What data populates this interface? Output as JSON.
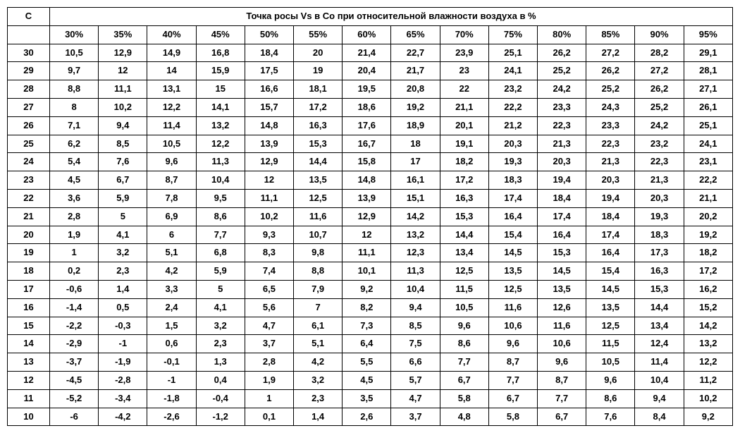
{
  "table": {
    "corner_label": "C",
    "header_title": "Точка росы Vs в Со при относительной влажности воздуха в %",
    "columns": [
      "30%",
      "35%",
      "40%",
      "45%",
      "50%",
      "55%",
      "60%",
      "65%",
      "70%",
      "75%",
      "80%",
      "85%",
      "90%",
      "95%"
    ],
    "row_labels": [
      "30",
      "29",
      "28",
      "27",
      "26",
      "25",
      "24",
      "23",
      "22",
      "21",
      "20",
      "19",
      "18",
      "17",
      "16",
      "15",
      "14",
      "13",
      "12",
      "11",
      "10"
    ],
    "rows": [
      [
        "10,5",
        "12,9",
        "14,9",
        "16,8",
        "18,4",
        "20",
        "21,4",
        "22,7",
        "23,9",
        "25,1",
        "26,2",
        "27,2",
        "28,2",
        "29,1"
      ],
      [
        "9,7",
        "12",
        "14",
        "15,9",
        "17,5",
        "19",
        "20,4",
        "21,7",
        "23",
        "24,1",
        "25,2",
        "26,2",
        "27,2",
        "28,1"
      ],
      [
        "8,8",
        "11,1",
        "13,1",
        "15",
        "16,6",
        "18,1",
        "19,5",
        "20,8",
        "22",
        "23,2",
        "24,2",
        "25,2",
        "26,2",
        "27,1"
      ],
      [
        "8",
        "10,2",
        "12,2",
        "14,1",
        "15,7",
        "17,2",
        "18,6",
        "19,2",
        "21,1",
        "22,2",
        "23,3",
        "24,3",
        "25,2",
        "26,1"
      ],
      [
        "7,1",
        "9,4",
        "11,4",
        "13,2",
        "14,8",
        "16,3",
        "17,6",
        "18,9",
        "20,1",
        "21,2",
        "22,3",
        "23,3",
        "24,2",
        "25,1"
      ],
      [
        "6,2",
        "8,5",
        "10,5",
        "12,2",
        "13,9",
        "15,3",
        "16,7",
        "18",
        "19,1",
        "20,3",
        "21,3",
        "22,3",
        "23,2",
        "24,1"
      ],
      [
        "5,4",
        "7,6",
        "9,6",
        "11,3",
        "12,9",
        "14,4",
        "15,8",
        "17",
        "18,2",
        "19,3",
        "20,3",
        "21,3",
        "22,3",
        "23,1"
      ],
      [
        "4,5",
        "6,7",
        "8,7",
        "10,4",
        "12",
        "13,5",
        "14,8",
        "16,1",
        "17,2",
        "18,3",
        "19,4",
        "20,3",
        "21,3",
        "22,2"
      ],
      [
        "3,6",
        "5,9",
        "7,8",
        "9,5",
        "11,1",
        "12,5",
        "13,9",
        "15,1",
        "16,3",
        "17,4",
        "18,4",
        "19,4",
        "20,3",
        "21,1"
      ],
      [
        "2,8",
        "5",
        "6,9",
        "8,6",
        "10,2",
        "11,6",
        "12,9",
        "14,2",
        "15,3",
        "16,4",
        "17,4",
        "18,4",
        "19,3",
        "20,2"
      ],
      [
        "1,9",
        "4,1",
        "6",
        "7,7",
        "9,3",
        "10,7",
        "12",
        "13,2",
        "14,4",
        "15,4",
        "16,4",
        "17,4",
        "18,3",
        "19,2"
      ],
      [
        "1",
        "3,2",
        "5,1",
        "6,8",
        "8,3",
        "9,8",
        "11,1",
        "12,3",
        "13,4",
        "14,5",
        "15,3",
        "16,4",
        "17,3",
        "18,2"
      ],
      [
        "0,2",
        "2,3",
        "4,2",
        "5,9",
        "7,4",
        "8,8",
        "10,1",
        "11,3",
        "12,5",
        "13,5",
        "14,5",
        "15,4",
        "16,3",
        "17,2"
      ],
      [
        "-0,6",
        "1,4",
        "3,3",
        "5",
        "6,5",
        "7,9",
        "9,2",
        "10,4",
        "11,5",
        "12,5",
        "13,5",
        "14,5",
        "15,3",
        "16,2"
      ],
      [
        "-1,4",
        "0,5",
        "2,4",
        "4,1",
        "5,6",
        "7",
        "8,2",
        "9,4",
        "10,5",
        "11,6",
        "12,6",
        "13,5",
        "14,4",
        "15,2"
      ],
      [
        "-2,2",
        "-0,3",
        "1,5",
        "3,2",
        "4,7",
        "6,1",
        "7,3",
        "8,5",
        "9,6",
        "10,6",
        "11,6",
        "12,5",
        "13,4",
        "14,2"
      ],
      [
        "-2,9",
        "-1",
        "0,6",
        "2,3",
        "3,7",
        "5,1",
        "6,4",
        "7,5",
        "8,6",
        "9,6",
        "10,6",
        "11,5",
        "12,4",
        "13,2"
      ],
      [
        "-3,7",
        "-1,9",
        "-0,1",
        "1,3",
        "2,8",
        "4,2",
        "5,5",
        "6,6",
        "7,7",
        "8,7",
        "9,6",
        "10,5",
        "11,4",
        "12,2"
      ],
      [
        "-4,5",
        "-2,8",
        "-1",
        "0,4",
        "1,9",
        "3,2",
        "4,5",
        "5,7",
        "6,7",
        "7,7",
        "8,7",
        "9,6",
        "10,4",
        "11,2"
      ],
      [
        "-5,2",
        "-3,4",
        "-1,8",
        "-0,4",
        "1",
        "2,3",
        "3,5",
        "4,7",
        "5,8",
        "6,7",
        "7,7",
        "8,6",
        "9,4",
        "10,2"
      ],
      [
        "-6",
        "-4,2",
        "-2,6",
        "-1,2",
        "0,1",
        "1,4",
        "2,6",
        "3,7",
        "4,8",
        "5,8",
        "6,7",
        "7,6",
        "8,4",
        "9,2"
      ]
    ],
    "styling": {
      "border_color": "#000000",
      "background_color": "#ffffff",
      "text_color": "#000000",
      "font_weight": "bold",
      "font_size": 13,
      "font_family": "Arial"
    }
  }
}
